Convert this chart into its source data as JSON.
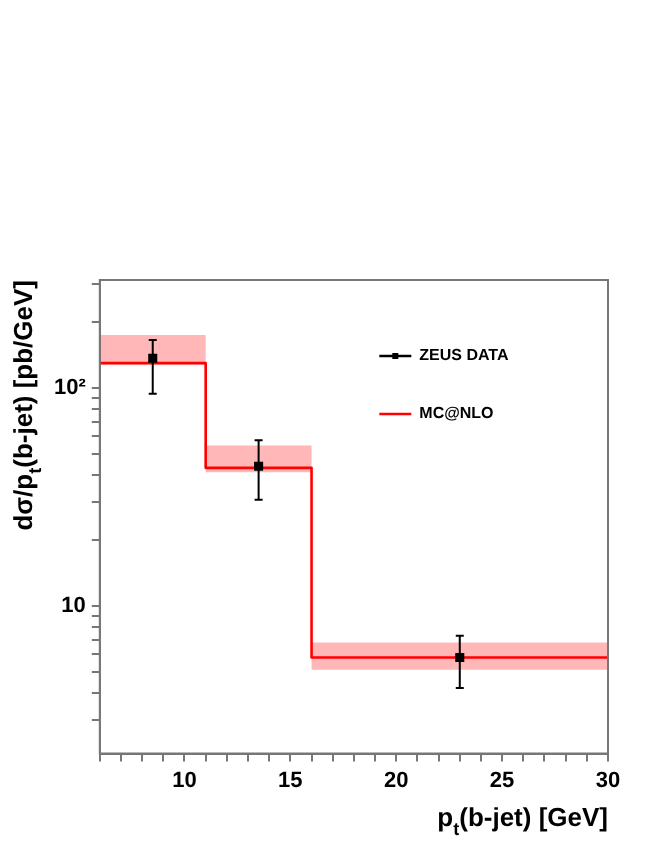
{
  "chart_data": {
    "type": "step",
    "xlabel": "p$_{t}$(b-jet) [GeV]",
    "ylabel": "dσ/p$_{t}$(b-jet) [pb/GeV]",
    "xlim": [
      6,
      30
    ],
    "xticks": [
      {
        "value": 6,
        "label": null
      },
      {
        "value": 7,
        "label": null
      },
      {
        "value": 8,
        "label": null
      },
      {
        "value": 9,
        "label": null
      },
      10,
      {
        "value": 11,
        "label": null
      },
      {
        "value": 12,
        "label": null
      },
      {
        "value": 13,
        "label": null
      },
      {
        "value": 14,
        "label": null
      },
      15,
      {
        "value": 16,
        "label": null
      },
      {
        "value": 17,
        "label": null
      },
      {
        "value": 18,
        "label": null
      },
      {
        "value": 19,
        "label": null
      },
      20,
      {
        "value": 21,
        "label": null
      },
      {
        "value": 22,
        "label": null
      },
      {
        "value": 23,
        "label": null
      },
      {
        "value": 24,
        "label": null
      },
      25,
      {
        "value": 26,
        "label": null
      },
      {
        "value": 27,
        "label": null
      },
      {
        "value": 28,
        "label": null
      },
      {
        "value": 29,
        "label": null
      },
      30
    ],
    "ylim": [
      2.1,
      313
    ],
    "log": "y",
    "yticks": [
      {
        "value": 3,
        "label": null
      },
      {
        "value": 4,
        "label": null
      },
      {
        "value": 5,
        "label": null
      },
      {
        "value": 6,
        "label": null
      },
      {
        "value": 7,
        "label": null
      },
      {
        "value": 8,
        "label": null
      },
      {
        "value": 9,
        "label": null
      },
      10,
      {
        "value": 20,
        "label": null
      },
      {
        "value": 30,
        "label": null
      },
      {
        "value": 40,
        "label": null
      },
      {
        "value": 50,
        "label": null
      },
      {
        "value": 60,
        "label": null
      },
      {
        "value": 70,
        "label": null
      },
      {
        "value": 80,
        "label": null
      },
      {
        "value": 90,
        "label": null
      },
      {
        "value": 100,
        "label": "10²"
      },
      {
        "value": 200,
        "label": null
      },
      {
        "value": 300,
        "label": null
      }
    ],
    "grid": false,
    "legend": "top right",
    "series": [
      {
        "name": "ZEUS DATA",
        "type": "scatter",
        "color": "#000000",
        "marker": "square",
        "x": [
          8.5,
          13.5,
          23
        ],
        "values": [
          137,
          43.7,
          5.8
        ],
        "errors": [
          [
            94,
            166
          ],
          [
            30.7,
            57.5
          ],
          [
            4.2,
            7.3
          ]
        ]
      },
      {
        "name": "MC@NLO",
        "color": "#ff0000",
        "x": [
          6,
          11,
          16,
          30
        ],
        "values": [
          130,
          43,
          5.8,
          5.8
        ],
        "lower": [
          128,
          41,
          5.1,
          5.1
        ],
        "upper": [
          175,
          54.5,
          6.8,
          6.8
        ]
      }
    ]
  }
}
